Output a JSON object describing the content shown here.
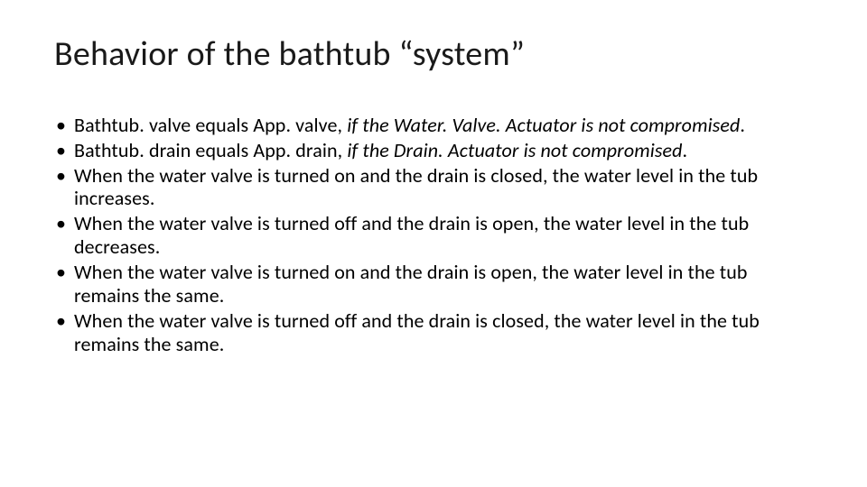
{
  "slide": {
    "title": "Behavior of the bathtub “system”",
    "bullets": [
      {
        "prefix": "Bathtub. valve equals App. valve, ",
        "italic": "if the Water. Valve. Actuator is not compromised",
        "suffix": "."
      },
      {
        "prefix": "Bathtub. drain equals App. drain, ",
        "italic": "if the Drain. Actuator is not compromised",
        "suffix": "."
      },
      {
        "prefix": "When the water valve is turned on and the drain is closed, the water level in the tub increases.",
        "italic": "",
        "suffix": ""
      },
      {
        "prefix": "When the water valve is turned off and the drain is open, the water level in the tub decreases.",
        "italic": "",
        "suffix": ""
      },
      {
        "prefix": "When the water valve is turned on and the drain is open, the water level in the tub remains the same.",
        "italic": "",
        "suffix": ""
      },
      {
        "prefix": "When the water valve is turned off and the drain is closed, the water level in the tub remains the same.",
        "italic": "",
        "suffix": ""
      }
    ]
  },
  "style": {
    "background_color": "#ffffff",
    "title_color": "#1a1a1a",
    "text_color": "#000000",
    "title_fontsize": 38,
    "body_fontsize": 22,
    "font_family": "Calibri"
  }
}
